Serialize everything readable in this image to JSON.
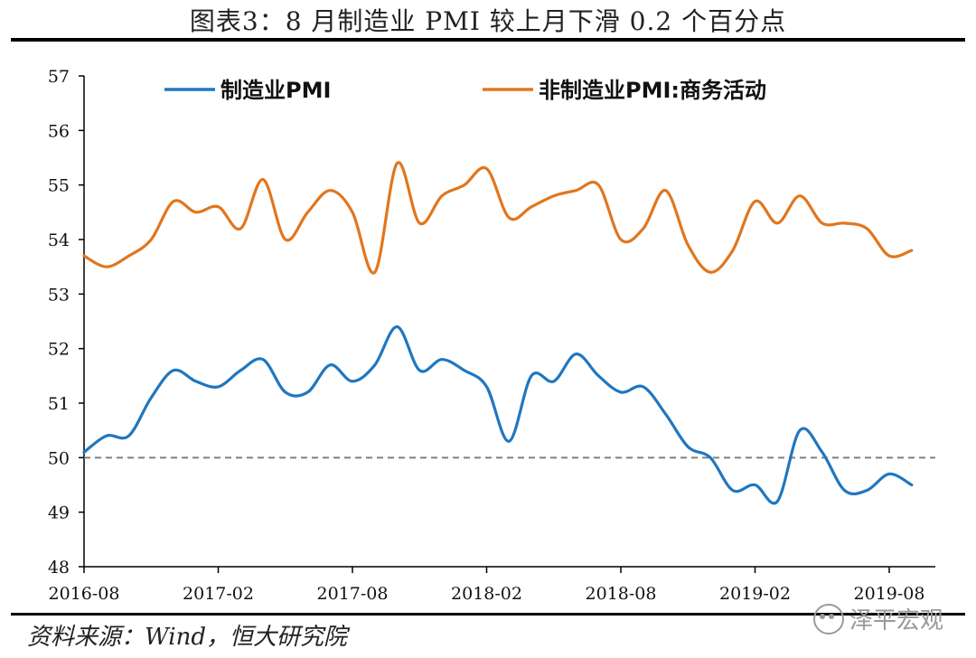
{
  "title": "图表3：8 月制造业 PMI 较上月下滑 0.2 个百分点",
  "source": "资料来源：Wind，恒大研究院",
  "watermark": "泽平宏观",
  "colors": {
    "manufacturing": "#1f77c0",
    "non_manufacturing": "#e0761e",
    "reference": "#808080",
    "axis": "#000000"
  },
  "chart_data": {
    "type": "line",
    "x_start": "2016-08",
    "x_tick_labels": [
      "2016-08",
      "2017-02",
      "2017-08",
      "2018-02",
      "2018-08",
      "2019-02",
      "2019-08"
    ],
    "ylim": [
      48,
      57
    ],
    "y_ticks": [
      48,
      49,
      50,
      51,
      52,
      53,
      54,
      55,
      56,
      57
    ],
    "reference_line": 50,
    "legend_position": "top",
    "series": [
      {
        "name": "制造业PMI",
        "color": "#1f77c0",
        "values": [
          50.1,
          50.4,
          50.4,
          51.1,
          51.6,
          51.4,
          51.3,
          51.6,
          51.8,
          51.2,
          51.2,
          51.7,
          51.4,
          51.7,
          52.4,
          51.6,
          51.8,
          51.6,
          51.3,
          50.3,
          51.5,
          51.4,
          51.9,
          51.5,
          51.2,
          51.3,
          50.8,
          50.2,
          50.0,
          49.4,
          49.5,
          49.2,
          50.5,
          50.1,
          49.4,
          49.4,
          49.7,
          49.5
        ]
      },
      {
        "name": "非制造业PMI:商务活动",
        "color": "#e0761e",
        "values": [
          53.7,
          53.5,
          53.7,
          54.0,
          54.7,
          54.5,
          54.6,
          54.2,
          55.1,
          54.0,
          54.5,
          54.9,
          54.5,
          53.4,
          55.4,
          54.3,
          54.8,
          55.0,
          55.3,
          54.4,
          54.6,
          54.8,
          54.9,
          55.0,
          54.0,
          54.2,
          54.9,
          53.9,
          53.4,
          53.8,
          54.7,
          54.3,
          54.8,
          54.3,
          54.3,
          54.2,
          53.7,
          53.8
        ]
      }
    ]
  }
}
